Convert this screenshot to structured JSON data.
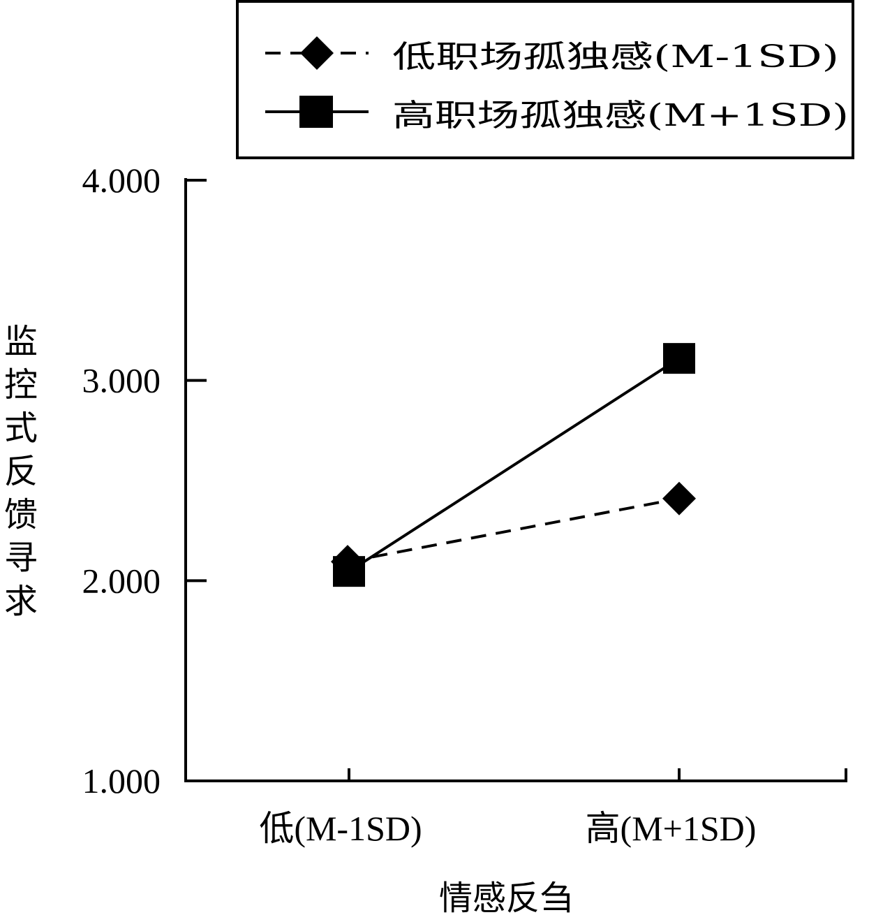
{
  "chart_data": {
    "type": "line",
    "title": "",
    "xlabel": "情感反刍",
    "ylabel": "监控式反馈寻求",
    "categories": [
      "低(M-1SD)",
      "高(M+1SD)"
    ],
    "yticks": [
      "1.000",
      "2.000",
      "3.000",
      "4.000"
    ],
    "ylim": [
      1,
      4
    ],
    "grid": false,
    "legend_position": "top-right",
    "series": [
      {
        "name": "低职场孤独感(M-1SD)",
        "values": [
          2.06,
          2.41
        ],
        "marker": "diamond",
        "line_style": "dashed",
        "color": "#000000"
      },
      {
        "name": "高职场孤独感(M+1SD)",
        "values": [
          2.06,
          3.11
        ],
        "marker": "square",
        "line_style": "solid",
        "color": "#000000"
      }
    ]
  }
}
